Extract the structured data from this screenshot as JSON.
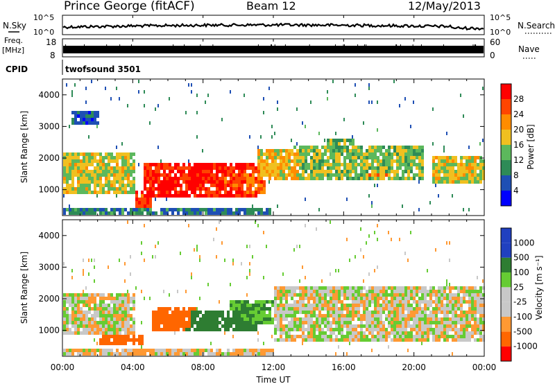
{
  "header": {
    "station": "Prince George (fitACF)",
    "beam": "Beam 12",
    "date": "12/May/2013"
  },
  "noise_panel": {
    "left_label": "N.Sky",
    "left_ticks": [
      "10^5",
      "10^0"
    ],
    "right_label": "N.Search",
    "right_ticks": [
      "10^5",
      "10^0"
    ]
  },
  "freq_panel": {
    "left_label_1": "Freq.",
    "left_label_2": "[MHz]",
    "left_ticks": [
      "18",
      "8"
    ],
    "right_label": "Nave",
    "right_ticks": [
      "60",
      "0"
    ]
  },
  "cpid": {
    "label": "CPID",
    "value": "twofsound 3501"
  },
  "power_panel": {
    "ylabel": "Slant Range [km]",
    "colorbar_label": "Power [dB]",
    "colorbar_ticks": [
      "28",
      "24",
      "20",
      "16",
      "12",
      "8",
      "4"
    ]
  },
  "velocity_panel": {
    "ylabel": "Slant Range [km]",
    "colorbar_label": "Velocity [m s⁻¹]",
    "colorbar_ticks": [
      "1000",
      "500",
      "100",
      "25",
      "-25",
      "-100",
      "-500",
      "-1000"
    ]
  },
  "xaxis": {
    "label": "Time UT",
    "ticks": [
      "00:00",
      "04:00",
      "08:00",
      "12:00",
      "16:00",
      "20:00",
      "00:00"
    ]
  },
  "colors": {
    "power_scale": [
      "#0000ff",
      "#1e4fb4",
      "#2e8b57",
      "#5cb85c",
      "#f0c020",
      "#ff8c00",
      "#ff4500",
      "#ff0000"
    ],
    "velocity_scale": [
      "#2040c0",
      "#2e7d32",
      "#66cc33",
      "#c8c8c8",
      "#c8c8c8",
      "#ff9933",
      "#ff6600",
      "#ff0000"
    ]
  },
  "chart_data": [
    {
      "type": "heatmap",
      "title": "Power",
      "ylabel": "Slant Range [km]",
      "xlabel": "",
      "x_range_hours": [
        0,
        24
      ],
      "ylim": [
        180,
        4500
      ],
      "zlabel": "Power [dB]",
      "zlim": [
        0,
        30
      ],
      "blobs": [
        {
          "t0": 0.0,
          "t1": 4.0,
          "r0": 900,
          "r1": 2200,
          "power": 16
        },
        {
          "t0": 0.5,
          "t1": 3.5,
          "r0": 1300,
          "r1": 1700,
          "power": 22
        },
        {
          "t0": 4.0,
          "t1": 5.0,
          "r0": 500,
          "r1": 1000,
          "power": 26
        },
        {
          "t0": 4.5,
          "t1": 11.0,
          "r0": 800,
          "r1": 1900,
          "power": 27
        },
        {
          "t0": 5.0,
          "t1": 8.0,
          "r0": 1000,
          "r1": 1600,
          "power": 29
        },
        {
          "t0": 8.0,
          "t1": 11.5,
          "r0": 900,
          "r1": 1700,
          "power": 24
        },
        {
          "t0": 11.0,
          "t1": 13.5,
          "r0": 1300,
          "r1": 2300,
          "power": 18
        },
        {
          "t0": 13.0,
          "t1": 20.5,
          "r0": 1300,
          "r1": 2400,
          "power": 14
        },
        {
          "t0": 15.0,
          "t1": 16.5,
          "r0": 2000,
          "r1": 2700,
          "power": 13
        },
        {
          "t0": 17.0,
          "t1": 19.0,
          "r0": 1400,
          "r1": 1700,
          "power": 20
        },
        {
          "t0": 21.0,
          "t1": 24.0,
          "r0": 1200,
          "r1": 2100,
          "power": 16
        },
        {
          "t0": 0.0,
          "t1": 12.0,
          "r0": 200,
          "r1": 500,
          "power": 8
        },
        {
          "t0": 0.5,
          "t1": 2.0,
          "r0": 3100,
          "r1": 3500,
          "power": 6
        }
      ]
    },
    {
      "type": "heatmap",
      "title": "Velocity",
      "ylabel": "Slant Range [km]",
      "xlabel": "Time UT",
      "x_range_hours": [
        0,
        24
      ],
      "ylim": [
        180,
        4500
      ],
      "zlabel": "Velocity [m s⁻¹]",
      "zlim": [
        -1000,
        1000
      ],
      "blobs": [
        {
          "t0": 0.0,
          "t1": 4.0,
          "r0": 900,
          "r1": 2200,
          "vel": 0
        },
        {
          "t0": 2.0,
          "t1": 4.5,
          "r0": 600,
          "r1": 900,
          "vel": -300
        },
        {
          "t0": 5.0,
          "t1": 7.5,
          "r0": 1000,
          "r1": 1800,
          "vel": -300
        },
        {
          "t0": 6.5,
          "t1": 11.0,
          "r0": 1000,
          "r1": 1700,
          "vel": 200
        },
        {
          "t0": 9.5,
          "t1": 12.0,
          "r0": 1200,
          "r1": 2000,
          "vel": 100
        },
        {
          "t0": 12.0,
          "t1": 24.0,
          "r0": 700,
          "r1": 2500,
          "vel": 0
        },
        {
          "t0": 0.0,
          "t1": 12.0,
          "r0": 200,
          "r1": 500,
          "vel": -20
        }
      ]
    }
  ]
}
